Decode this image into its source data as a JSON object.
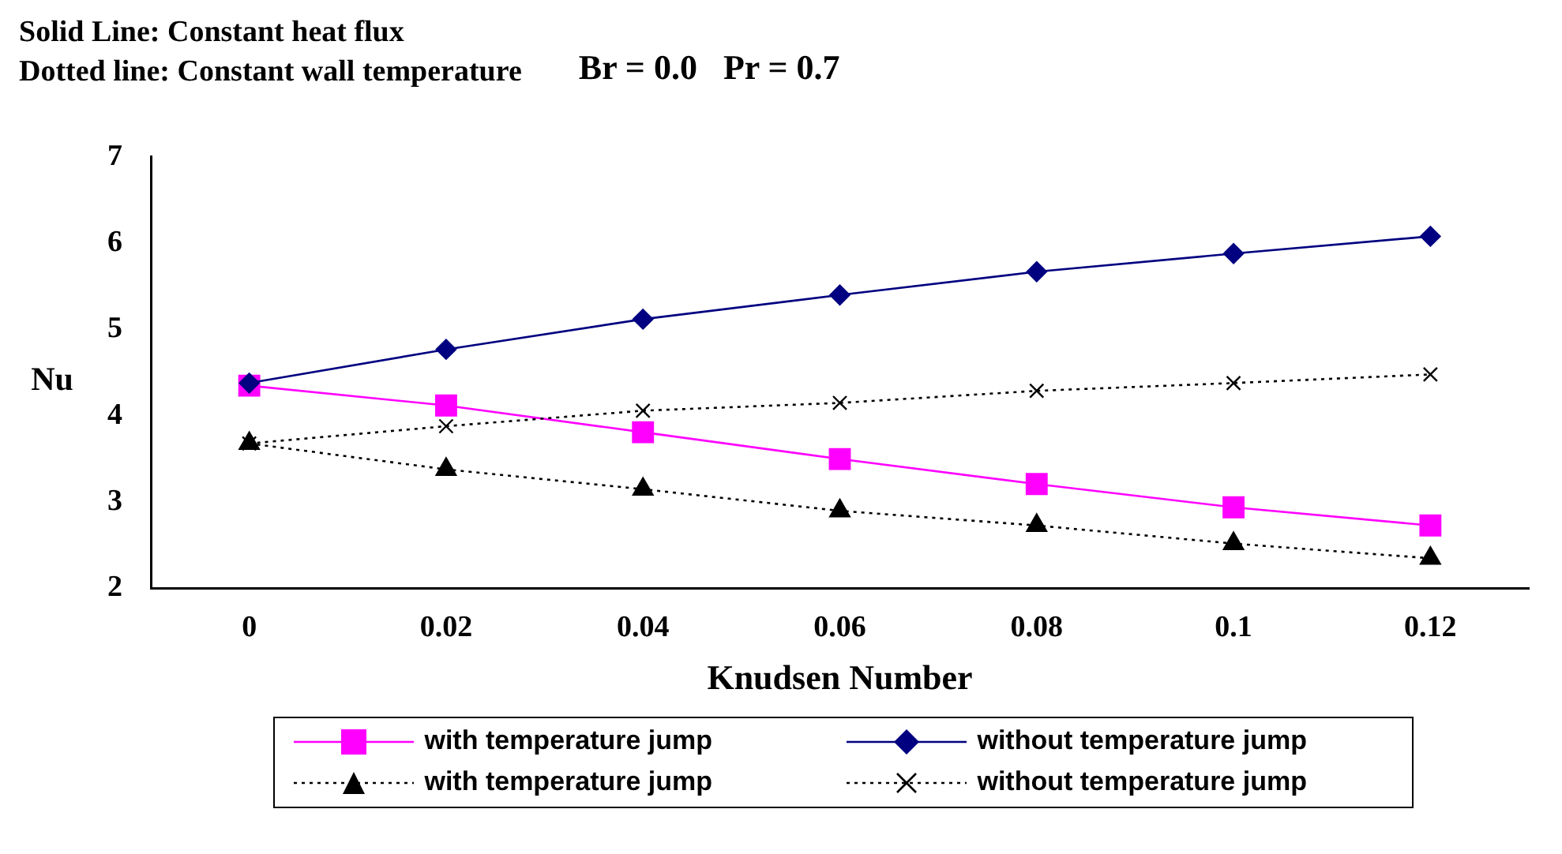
{
  "chart_data": {
    "type": "line",
    "annotations": [
      "Solid Line: Constant heat flux",
      "Dotted line: Constant wall temperature",
      "Br = 0.0   Pr = 0.7"
    ],
    "xlabel": "Knudsen Number",
    "ylabel": "Nu",
    "categories": [
      "0",
      "0.02",
      "0.04",
      "0.06",
      "0.08",
      "0.1",
      "0.12"
    ],
    "ylim": [
      2,
      7
    ],
    "yticks": [
      2,
      3,
      4,
      5,
      6,
      7
    ],
    "grid": false,
    "legend": "bottom",
    "series": [
      {
        "name": "with temperature jump",
        "color": "#ff00ff",
        "marker": "square",
        "line_style": "solid",
        "values": [
          4.35,
          4.12,
          3.81,
          3.5,
          3.21,
          2.94,
          2.73
        ]
      },
      {
        "name": "without temperature jump",
        "color": "#000080",
        "marker": "diamond",
        "line_style": "solid",
        "values": [
          4.38,
          4.77,
          5.12,
          5.4,
          5.67,
          5.88,
          6.08
        ]
      },
      {
        "name": "with temperature jump",
        "color": "#000000",
        "marker": "triangle",
        "line_style": "dotted",
        "values": [
          3.68,
          3.38,
          3.15,
          2.9,
          2.73,
          2.52,
          2.35
        ]
      },
      {
        "name": "without temperature jump",
        "color": "#000000",
        "marker": "cross",
        "line_style": "dotted",
        "values": [
          3.68,
          3.88,
          4.06,
          4.15,
          4.29,
          4.38,
          4.48
        ]
      }
    ]
  }
}
